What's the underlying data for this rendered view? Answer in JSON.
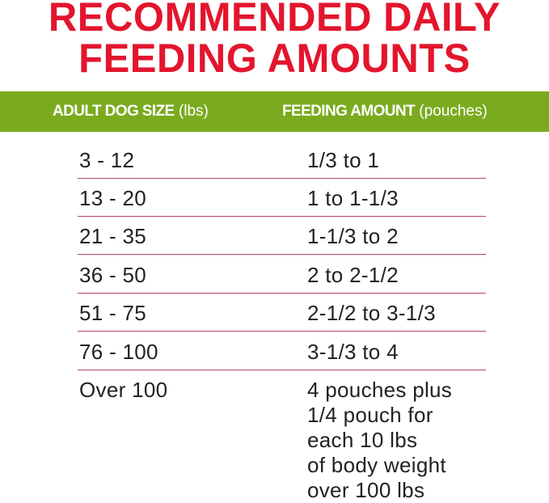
{
  "title": {
    "line1": "RECOMMENDED DAILY",
    "line2": "FEEDING AMOUNTS"
  },
  "colors": {
    "title": "#e3152d",
    "header_band": "#7aab1f",
    "row_divider": "#b5485c"
  },
  "table": {
    "headers": [
      {
        "bold": "ADULT DOG SIZE",
        "unit": "(lbs)"
      },
      {
        "bold": "FEEDING AMOUNT",
        "unit": "(pouches)"
      }
    ],
    "rows": [
      {
        "size": "3 - 12",
        "amount": "1/3 to 1"
      },
      {
        "size": "13 - 20",
        "amount": "1 to 1-1/3"
      },
      {
        "size": "21 - 35",
        "amount": "1-1/3 to 2"
      },
      {
        "size": "36 - 50",
        "amount": "2 to 2-1/2"
      },
      {
        "size": "51 - 75",
        "amount": "2-1/2 to 3-1/3"
      },
      {
        "size": "76 - 100",
        "amount": "3-1/3 to 4"
      }
    ],
    "last_row": {
      "size": "Over 100",
      "amount_lines": [
        "4 pouches plus",
        "1/4 pouch for",
        "each 10 lbs",
        "of body weight",
        "over 100 lbs"
      ]
    }
  }
}
